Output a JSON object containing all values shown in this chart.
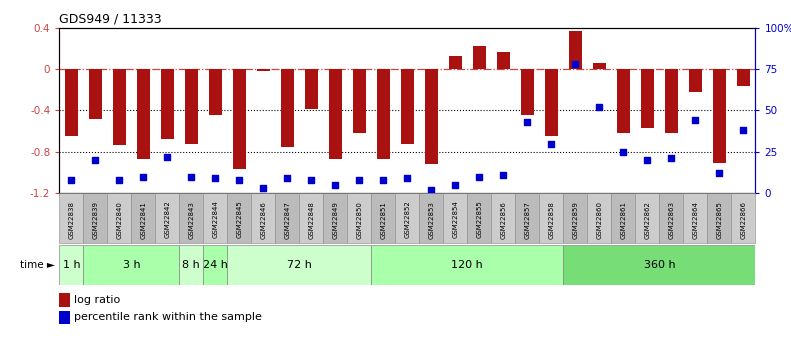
{
  "title": "GDS949 / 11333",
  "samples": [
    "GSM22838",
    "GSM22839",
    "GSM22840",
    "GSM22841",
    "GSM22842",
    "GSM22843",
    "GSM22844",
    "GSM22845",
    "GSM22846",
    "GSM22847",
    "GSM22848",
    "GSM22849",
    "GSM22850",
    "GSM22851",
    "GSM22852",
    "GSM22853",
    "GSM22854",
    "GSM22855",
    "GSM22856",
    "GSM22857",
    "GSM22858",
    "GSM22859",
    "GSM22860",
    "GSM22861",
    "GSM22862",
    "GSM22863",
    "GSM22864",
    "GSM22865",
    "GSM22866"
  ],
  "log_ratio": [
    -0.65,
    -0.48,
    -0.73,
    -0.87,
    -0.68,
    -0.72,
    -0.44,
    -0.97,
    -0.02,
    -0.75,
    -0.39,
    -0.87,
    -0.62,
    -0.87,
    -0.72,
    -0.92,
    0.13,
    0.22,
    0.16,
    -0.44,
    -0.65,
    0.37,
    0.06,
    -0.62,
    -0.57,
    -0.62,
    -0.22,
    -0.91,
    -0.16
  ],
  "percentile": [
    8,
    20,
    8,
    10,
    22,
    10,
    9,
    8,
    3,
    9,
    8,
    5,
    8,
    8,
    9,
    2,
    5,
    10,
    11,
    43,
    30,
    78,
    52,
    25,
    20,
    21,
    44,
    12,
    38
  ],
  "time_groups": [
    {
      "label": "1 h",
      "start": 0,
      "end": 1,
      "color": "#ccffcc"
    },
    {
      "label": "3 h",
      "start": 1,
      "end": 5,
      "color": "#aaffaa"
    },
    {
      "label": "8 h",
      "start": 5,
      "end": 6,
      "color": "#ccffcc"
    },
    {
      "label": "24 h",
      "start": 6,
      "end": 7,
      "color": "#aaffaa"
    },
    {
      "label": "72 h",
      "start": 7,
      "end": 13,
      "color": "#ccffcc"
    },
    {
      "label": "120 h",
      "start": 13,
      "end": 21,
      "color": "#aaffaa"
    },
    {
      "label": "360 h",
      "start": 21,
      "end": 29,
      "color": "#77dd77"
    }
  ],
  "ylim_left": [
    -1.2,
    0.4
  ],
  "ylim_right": [
    0,
    100
  ],
  "bar_color": "#aa1111",
  "dot_color": "#0000cc",
  "dashed_color": "#cc4444",
  "label_bg_color": "#cccccc",
  "label_bg_color2": "#bbbbbb"
}
